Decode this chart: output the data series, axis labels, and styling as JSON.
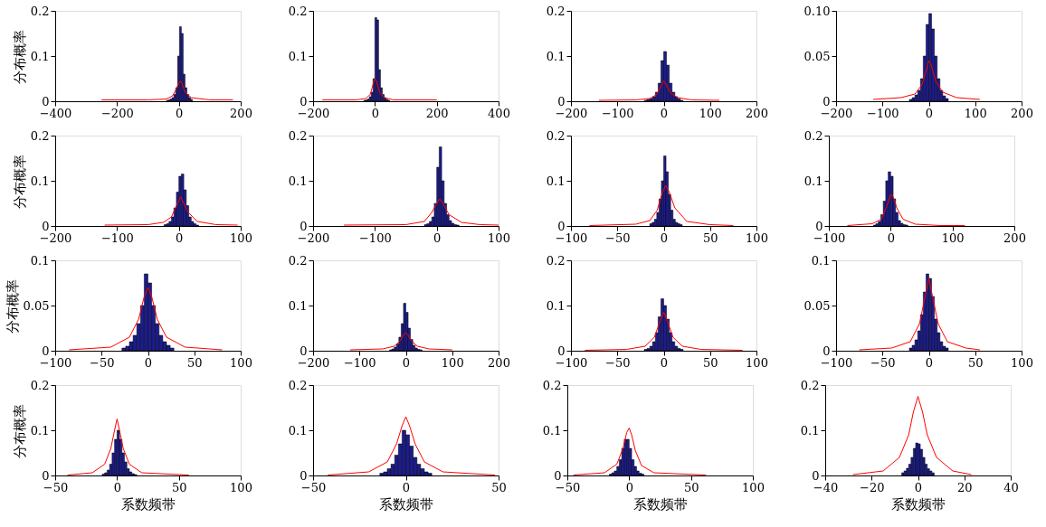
{
  "chart_data": [
    {
      "type": "histogram",
      "ylabel": "分布概率",
      "color": "#1c1c8c",
      "bins": [
        -40,
        -34,
        -28,
        -22,
        -16,
        -10,
        -4,
        2,
        8,
        14,
        20,
        26,
        32,
        38,
        44
      ],
      "values": [
        0.002,
        0.003,
        0.005,
        0.008,
        0.015,
        0.03,
        0.1,
        0.165,
        0.15,
        0.06,
        0.03,
        0.015,
        0.008,
        0.004
      ],
      "xlim": [
        -400,
        200
      ],
      "xticks": [
        -400,
        -200,
        0,
        200
      ],
      "ylim": [
        0,
        0.2
      ],
      "yticks": [
        0,
        0.1,
        0.2
      ],
      "series": [
        {
          "type": "line",
          "color": "#ff0000",
          "x": [
            -250,
            -100,
            -40,
            -20,
            -10,
            0,
            5,
            10,
            20,
            40,
            100,
            175
          ],
          "values": [
            0.003,
            0.003,
            0.005,
            0.012,
            0.025,
            0.04,
            0.045,
            0.04,
            0.02,
            0.008,
            0.003,
            0.003
          ]
        }
      ]
    },
    {
      "type": "histogram",
      "color": "#1c1c8c",
      "bins": [
        -36,
        -30,
        -24,
        -18,
        -12,
        -6,
        0,
        6,
        12,
        18,
        24,
        30,
        36,
        42,
        48
      ],
      "values": [
        0.002,
        0.003,
        0.005,
        0.01,
        0.02,
        0.05,
        0.185,
        0.18,
        0.07,
        0.03,
        0.015,
        0.008,
        0.004,
        0.002
      ],
      "xlim": [
        -200,
        400
      ],
      "xticks": [
        -200,
        0,
        200,
        400
      ],
      "ylim": [
        0,
        0.2
      ],
      "yticks": [
        0,
        0.1,
        0.2
      ],
      "series": [
        {
          "type": "line",
          "color": "#ff0000",
          "x": [
            -170,
            -60,
            -30,
            -15,
            -5,
            0,
            5,
            15,
            30,
            60,
            200
          ],
          "values": [
            0.003,
            0.003,
            0.006,
            0.015,
            0.04,
            0.05,
            0.045,
            0.02,
            0.008,
            0.003,
            0.003
          ]
        }
      ]
    },
    {
      "type": "histogram",
      "color": "#1c1c8c",
      "bins": [
        -42,
        -36,
        -30,
        -24,
        -18,
        -12,
        -6,
        0,
        6,
        12,
        18,
        24,
        30,
        36,
        42
      ],
      "values": [
        0.002,
        0.004,
        0.006,
        0.01,
        0.02,
        0.04,
        0.09,
        0.11,
        0.08,
        0.04,
        0.02,
        0.01,
        0.005,
        0.002
      ],
      "xlim": [
        -200,
        200
      ],
      "xticks": [
        -200,
        -100,
        0,
        100,
        200
      ],
      "ylim": [
        0,
        0.2
      ],
      "yticks": [
        0,
        0.1,
        0.2
      ],
      "series": [
        {
          "type": "line",
          "color": "#ff0000",
          "x": [
            -140,
            -60,
            -30,
            -15,
            -5,
            0,
            5,
            15,
            30,
            60,
            120
          ],
          "values": [
            0.002,
            0.003,
            0.006,
            0.015,
            0.035,
            0.045,
            0.038,
            0.018,
            0.008,
            0.003,
            0.002
          ]
        }
      ]
    },
    {
      "type": "histogram",
      "color": "#1c1c8c",
      "bins": [
        -42,
        -36,
        -30,
        -24,
        -18,
        -12,
        -6,
        0,
        6,
        12,
        18,
        24,
        30,
        36,
        42
      ],
      "values": [
        0.002,
        0.004,
        0.007,
        0.012,
        0.025,
        0.05,
        0.085,
        0.097,
        0.08,
        0.05,
        0.025,
        0.012,
        0.006,
        0.003
      ],
      "xlim": [
        -200,
        200
      ],
      "xticks": [
        -200,
        -100,
        0,
        100,
        200
      ],
      "ylim": [
        0,
        0.1
      ],
      "yticks": [
        0,
        0.05,
        {
          "value": 0.1,
          "label": "0.10"
        }
      ],
      "series": [
        {
          "type": "line",
          "color": "#ff0000",
          "x": [
            -120,
            -60,
            -30,
            -15,
            -5,
            0,
            5,
            15,
            30,
            60,
            110
          ],
          "values": [
            0.002,
            0.004,
            0.008,
            0.018,
            0.035,
            0.045,
            0.04,
            0.022,
            0.01,
            0.004,
            0.002
          ]
        }
      ]
    },
    {
      "type": "histogram",
      "ylabel": "分布概率",
      "color": "#1c1c8c",
      "bins": [
        -24,
        -20,
        -16,
        -12,
        -8,
        -4,
        0,
        4,
        8,
        12,
        16,
        20,
        24,
        28,
        32
      ],
      "values": [
        0.003,
        0.005,
        0.01,
        0.02,
        0.04,
        0.075,
        0.11,
        0.115,
        0.08,
        0.045,
        0.02,
        0.01,
        0.005,
        0.002
      ],
      "xlim": [
        -200,
        100
      ],
      "xticks": [
        -200,
        -100,
        0,
        100
      ],
      "ylim": [
        0,
        0.2
      ],
      "yticks": [
        0,
        0.1,
        0.2
      ],
      "series": [
        {
          "type": "line",
          "color": "#ff0000",
          "x": [
            -120,
            -50,
            -25,
            -12,
            -4,
            3,
            8,
            15,
            30,
            60,
            95
          ],
          "values": [
            0.002,
            0.003,
            0.008,
            0.02,
            0.045,
            0.065,
            0.05,
            0.03,
            0.01,
            0.003,
            0.002
          ]
        }
      ]
    },
    {
      "type": "histogram",
      "color": "#1c1c8c",
      "bins": [
        -20,
        -16,
        -12,
        -8,
        -4,
        0,
        4,
        8,
        12,
        16,
        20,
        24,
        28,
        32,
        36
      ],
      "values": [
        0.003,
        0.005,
        0.01,
        0.02,
        0.05,
        0.13,
        0.175,
        0.1,
        0.05,
        0.025,
        0.012,
        0.006,
        0.003,
        0.002
      ],
      "xlim": [
        -200,
        100
      ],
      "xticks": [
        -200,
        -100,
        0,
        100
      ],
      "ylim": [
        0,
        0.2
      ],
      "yticks": [
        0,
        0.1,
        0.2
      ],
      "series": [
        {
          "type": "line",
          "color": "#ff0000",
          "x": [
            -150,
            -50,
            -20,
            -8,
            0,
            5,
            10,
            20,
            40,
            70,
            100
          ],
          "values": [
            0.002,
            0.003,
            0.01,
            0.03,
            0.05,
            0.06,
            0.05,
            0.025,
            0.008,
            0.003,
            0.002
          ]
        }
      ]
    },
    {
      "type": "histogram",
      "color": "#1c1c8c",
      "bins": [
        -15,
        -12.5,
        -10,
        -7.5,
        -5,
        -2.5,
        0,
        2.5,
        5,
        7.5,
        10,
        12.5,
        15,
        17.5,
        20
      ],
      "values": [
        0.005,
        0.008,
        0.015,
        0.03,
        0.06,
        0.1,
        0.155,
        0.12,
        0.07,
        0.035,
        0.015,
        0.008,
        0.005,
        0.003
      ],
      "xlim": [
        -100,
        100
      ],
      "xticks": [
        -100,
        -50,
        0,
        50,
        100
      ],
      "ylim": [
        0,
        0.2
      ],
      "yticks": [
        0,
        0.1,
        0.2
      ],
      "series": [
        {
          "type": "line",
          "color": "#ff0000",
          "x": [
            -80,
            -30,
            -15,
            -7,
            -2,
            2,
            6,
            12,
            25,
            50,
            75
          ],
          "values": [
            0.001,
            0.004,
            0.012,
            0.035,
            0.07,
            0.09,
            0.075,
            0.04,
            0.01,
            0.003,
            0.001
          ]
        }
      ]
    },
    {
      "type": "histogram",
      "color": "#1c1c8c",
      "bins": [
        -28,
        -24,
        -20,
        -16,
        -12,
        -8,
        -4,
        0,
        4,
        8,
        12,
        16,
        20,
        24,
        28
      ],
      "values": [
        0.002,
        0.005,
        0.01,
        0.025,
        0.055,
        0.1,
        0.12,
        0.11,
        0.06,
        0.03,
        0.012,
        0.006,
        0.003,
        0.002
      ],
      "xlim": [
        -100,
        200
      ],
      "xticks": [
        -100,
        0,
        100,
        200
      ],
      "ylim": [
        0,
        0.2
      ],
      "yticks": [
        0,
        0.1,
        0.2
      ],
      "series": [
        {
          "type": "line",
          "color": "#ff0000",
          "x": [
            -70,
            -30,
            -15,
            -6,
            0,
            4,
            10,
            20,
            40,
            80,
            120
          ],
          "values": [
            0.001,
            0.005,
            0.015,
            0.045,
            0.07,
            0.065,
            0.04,
            0.015,
            0.004,
            0.001,
            0.001
          ]
        }
      ]
    },
    {
      "type": "histogram",
      "ylabel": "分布概率",
      "color": "#1c1c8c",
      "bins": [
        -28,
        -24,
        -20,
        -16,
        -12,
        -8,
        -4,
        0,
        4,
        8,
        12,
        16,
        20,
        24,
        28
      ],
      "values": [
        0.003,
        0.005,
        0.01,
        0.017,
        0.03,
        0.05,
        0.085,
        0.075,
        0.05,
        0.03,
        0.017,
        0.01,
        0.006,
        0.003
      ],
      "xlim": [
        -100,
        100
      ],
      "xticks": [
        -100,
        -50,
        0,
        50,
        100
      ],
      "ylim": [
        0,
        0.1
      ],
      "yticks": [
        0,
        0.05,
        0.1
      ],
      "series": [
        {
          "type": "line",
          "color": "#ff0000",
          "x": [
            -85,
            -40,
            -20,
            -10,
            -4,
            0,
            4,
            10,
            20,
            40,
            80
          ],
          "values": [
            0.001,
            0.004,
            0.015,
            0.035,
            0.06,
            0.07,
            0.06,
            0.035,
            0.015,
            0.004,
            0.001
          ]
        }
      ]
    },
    {
      "type": "histogram",
      "color": "#1c1c8c",
      "bins": [
        -35,
        -30,
        -25,
        -20,
        -15,
        -10,
        -5,
        0,
        5,
        10,
        15,
        20,
        25,
        30,
        35
      ],
      "values": [
        0.002,
        0.004,
        0.008,
        0.015,
        0.03,
        0.06,
        0.105,
        0.085,
        0.05,
        0.025,
        0.012,
        0.006,
        0.003,
        0.002
      ],
      "xlim": [
        -200,
        200
      ],
      "xticks": [
        -200,
        -100,
        0,
        100,
        200
      ],
      "ylim": [
        0,
        0.2
      ],
      "yticks": [
        0,
        0.1,
        0.2
      ],
      "series": [
        {
          "type": "line",
          "color": "#ff0000",
          "x": [
            -120,
            -50,
            -25,
            -12,
            -4,
            0,
            4,
            12,
            25,
            50,
            100
          ],
          "values": [
            0.002,
            0.004,
            0.01,
            0.022,
            0.037,
            0.04,
            0.036,
            0.022,
            0.01,
            0.004,
            0.002
          ]
        }
      ]
    },
    {
      "type": "histogram",
      "color": "#1c1c8c",
      "bins": [
        -21,
        -18,
        -15,
        -12,
        -9,
        -6,
        -3,
        0,
        3,
        6,
        9,
        12,
        15,
        18,
        21
      ],
      "values": [
        0.003,
        0.005,
        0.01,
        0.02,
        0.04,
        0.075,
        0.115,
        0.1,
        0.07,
        0.04,
        0.02,
        0.01,
        0.005,
        0.003
      ],
      "xlim": [
        -100,
        100
      ],
      "xticks": [
        -100,
        -50,
        0,
        50,
        100
      ],
      "ylim": [
        0,
        0.2
      ],
      "yticks": [
        0,
        0.1,
        0.2
      ],
      "series": [
        {
          "type": "line",
          "color": "#ff0000",
          "x": [
            -85,
            -40,
            -20,
            -10,
            -4,
            0,
            4,
            10,
            20,
            40,
            85
          ],
          "values": [
            0.001,
            0.003,
            0.01,
            0.03,
            0.065,
            0.085,
            0.065,
            0.03,
            0.01,
            0.003,
            0.001
          ]
        }
      ]
    },
    {
      "type": "histogram",
      "color": "#1c1c8c",
      "bins": [
        -21,
        -18,
        -15,
        -12,
        -9,
        -6,
        -3,
        0,
        3,
        6,
        9,
        12,
        15,
        18,
        21
      ],
      "values": [
        0.003,
        0.006,
        0.012,
        0.022,
        0.04,
        0.065,
        0.085,
        0.08,
        0.06,
        0.035,
        0.02,
        0.01,
        0.005,
        0.003
      ],
      "xlim": [
        -100,
        100
      ],
      "xticks": [
        -100,
        -50,
        0,
        50,
        100
      ],
      "ylim": [
        0,
        0.1
      ],
      "yticks": [
        0,
        0.05,
        0.1
      ],
      "series": [
        {
          "type": "line",
          "color": "#ff0000",
          "x": [
            -75,
            -40,
            -20,
            -10,
            -4,
            0,
            4,
            10,
            20,
            40,
            55
          ],
          "values": [
            0.001,
            0.003,
            0.01,
            0.03,
            0.06,
            0.08,
            0.06,
            0.03,
            0.01,
            0.003,
            0.001
          ]
        }
      ]
    },
    {
      "type": "histogram",
      "ylabel": "分布概率",
      "xlabel": "系数频带",
      "color": "#1c1c8c",
      "bins": [
        -12,
        -10,
        -8,
        -6,
        -4,
        -2,
        0,
        2,
        4,
        6,
        8,
        10,
        12,
        14,
        16
      ],
      "values": [
        0.003,
        0.006,
        0.012,
        0.025,
        0.05,
        0.08,
        0.1,
        0.08,
        0.05,
        0.03,
        0.015,
        0.008,
        0.004,
        0.002
      ],
      "xlim": [
        -50,
        100
      ],
      "xticks": [
        -50,
        0,
        50,
        100
      ],
      "ylim": [
        0,
        0.2
      ],
      "yticks": [
        0,
        0.1,
        0.2
      ],
      "series": [
        {
          "type": "line",
          "color": "#ff0000",
          "x": [
            -40,
            -20,
            -10,
            -5,
            -2,
            0,
            2,
            5,
            10,
            20,
            58
          ],
          "values": [
            0.001,
            0.006,
            0.025,
            0.06,
            0.1,
            0.125,
            0.1,
            0.06,
            0.025,
            0.006,
            0.001
          ]
        }
      ]
    },
    {
      "type": "histogram",
      "xlabel": "系数频带",
      "color": "#1c1c8c",
      "bins": [
        -14,
        -12,
        -10,
        -8,
        -6,
        -4,
        -2,
        0,
        2,
        4,
        6,
        8,
        10,
        12,
        14
      ],
      "values": [
        0.005,
        0.008,
        0.015,
        0.025,
        0.045,
        0.07,
        0.1,
        0.09,
        0.065,
        0.04,
        0.025,
        0.015,
        0.008,
        0.005
      ],
      "xlim": [
        -50,
        50
      ],
      "xticks": [
        -50,
        0,
        50
      ],
      "ylim": [
        0,
        0.2
      ],
      "yticks": [
        0,
        0.1,
        0.2
      ],
      "series": [
        {
          "type": "line",
          "color": "#ff0000",
          "x": [
            -42,
            -20,
            -10,
            -5,
            -2,
            0,
            2,
            5,
            10,
            20,
            48
          ],
          "values": [
            0.001,
            0.008,
            0.03,
            0.07,
            0.11,
            0.13,
            0.11,
            0.07,
            0.03,
            0.008,
            0.001
          ]
        }
      ]
    },
    {
      "type": "histogram",
      "xlabel": "系数频带",
      "color": "#1c1c8c",
      "bins": [
        -16,
        -14,
        -12,
        -10,
        -8,
        -6,
        -4,
        -2,
        0,
        2,
        4,
        6,
        8,
        10,
        12
      ],
      "values": [
        0.003,
        0.006,
        0.01,
        0.02,
        0.035,
        0.06,
        0.08,
        0.08,
        0.06,
        0.035,
        0.02,
        0.01,
        0.005,
        0.003
      ],
      "xlim": [
        -50,
        100
      ],
      "xticks": [
        -50,
        0,
        50,
        100
      ],
      "ylim": [
        0,
        0.2
      ],
      "yticks": [
        0,
        0.1,
        0.2
      ],
      "series": [
        {
          "type": "line",
          "color": "#ff0000",
          "x": [
            -45,
            -20,
            -10,
            -5,
            -2,
            0,
            2,
            5,
            10,
            20,
            62
          ],
          "values": [
            0.001,
            0.006,
            0.025,
            0.06,
            0.095,
            0.105,
            0.09,
            0.055,
            0.022,
            0.006,
            0.001
          ]
        }
      ]
    },
    {
      "type": "histogram",
      "xlabel": "系数频带",
      "color": "#1c1c8c",
      "bins": [
        -7,
        -6,
        -5,
        -4,
        -3,
        -2,
        -1,
        0,
        1,
        2,
        3,
        4,
        5,
        6,
        7
      ],
      "values": [
        0.006,
        0.01,
        0.016,
        0.025,
        0.04,
        0.06,
        0.072,
        0.07,
        0.058,
        0.04,
        0.025,
        0.015,
        0.01,
        0.006
      ],
      "xlim": [
        -40,
        40
      ],
      "xticks": [
        -40,
        -20,
        0,
        20,
        40
      ],
      "ylim": [
        0,
        0.2
      ],
      "yticks": [
        0,
        0.1,
        0.2
      ],
      "series": [
        {
          "type": "line",
          "color": "#ff0000",
          "x": [
            -28,
            -15,
            -8,
            -4,
            -2,
            0,
            2,
            4,
            8,
            15,
            23
          ],
          "values": [
            0.002,
            0.01,
            0.04,
            0.09,
            0.14,
            0.175,
            0.14,
            0.09,
            0.04,
            0.01,
            0.002
          ]
        }
      ]
    }
  ]
}
